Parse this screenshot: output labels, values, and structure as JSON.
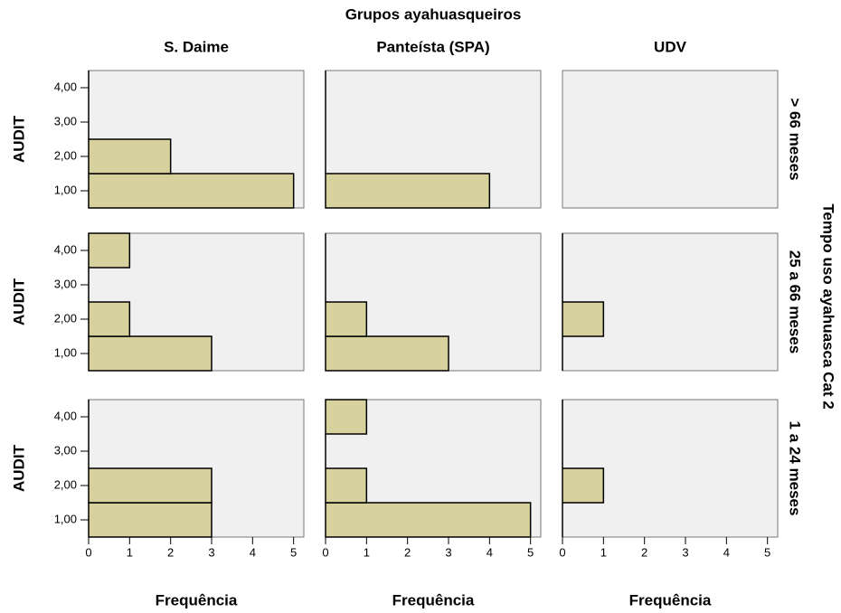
{
  "chart_data": {
    "type": "bar",
    "orientation": "horizontal",
    "title": "Grupos ayahuasqueiros",
    "column_labels": [
      "S. Daime",
      "Panteísta (SPA)",
      "UDV"
    ],
    "row_title": "Tempo uso ayahuasca Cat 2",
    "row_labels": [
      "> 66 meses",
      "25 a 66 meses",
      "1 a 24 meses"
    ],
    "x_label": "Frequência",
    "y_label": "AUDIT",
    "categories": [
      "1,00",
      "2,00",
      "3,00",
      "4,00"
    ],
    "color": "#d6d19d",
    "xlim": [
      0,
      5.25
    ],
    "xticks": [
      0,
      1,
      2,
      3,
      4,
      5
    ],
    "values": [
      [
        [
          5,
          2,
          0,
          0
        ],
        [
          4,
          0,
          0,
          0
        ],
        [
          null,
          null,
          null,
          null
        ]
      ],
      [
        [
          3,
          1,
          0,
          1
        ],
        [
          3,
          1,
          0,
          0
        ],
        [
          0,
          1,
          0,
          0
        ]
      ],
      [
        [
          3,
          3,
          0,
          0
        ],
        [
          5,
          1,
          0,
          1
        ],
        [
          0,
          1,
          0,
          0
        ]
      ]
    ]
  }
}
